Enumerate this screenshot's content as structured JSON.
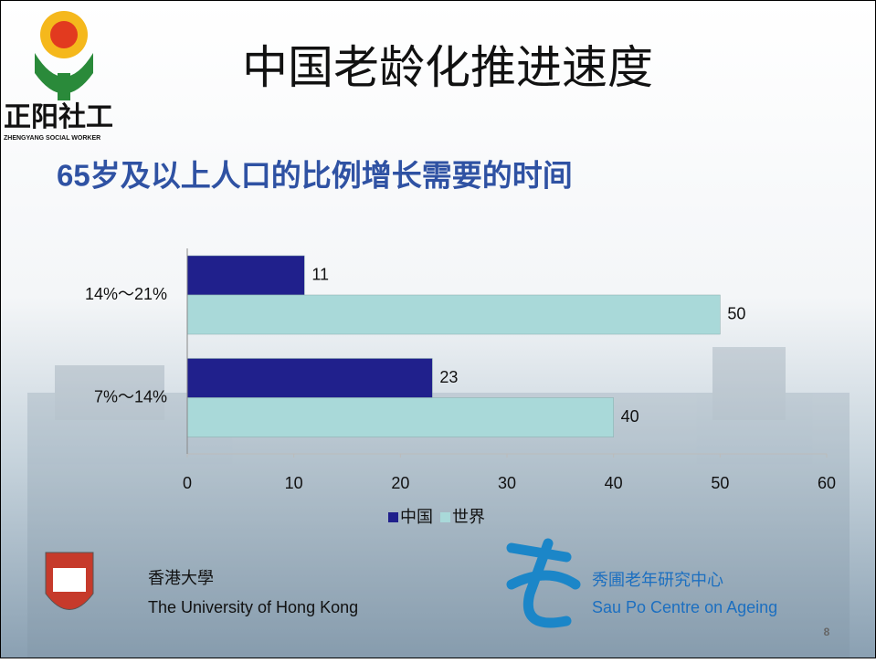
{
  "chart_data": {
    "type": "bar",
    "orientation": "horizontal",
    "title": "中国老龄化推进速度",
    "subtitle": "65岁及以上人口的比例增长需要的时间",
    "categories": [
      "14%～21%",
      "7%～14%"
    ],
    "series": [
      {
        "name": "中国",
        "color": "#20208c",
        "values": [
          11,
          23
        ]
      },
      {
        "name": "世界",
        "color": "#a9d9d9",
        "values": [
          50,
          40
        ]
      }
    ],
    "xlim": [
      0,
      60
    ],
    "xticks": [
      0,
      10,
      20,
      30,
      40,
      50,
      60
    ],
    "legend": "bottom"
  },
  "logo": {
    "name": "正阳社工",
    "subtitle": "ZHENGYANG SOCIAL WORKER"
  },
  "footer": {
    "left_cn": "香港大學",
    "left_en": "The University of Hong Kong",
    "right_cn": "秀圃老年研究中心",
    "right_en": "Sau Po Centre on Ageing",
    "page": "8"
  }
}
